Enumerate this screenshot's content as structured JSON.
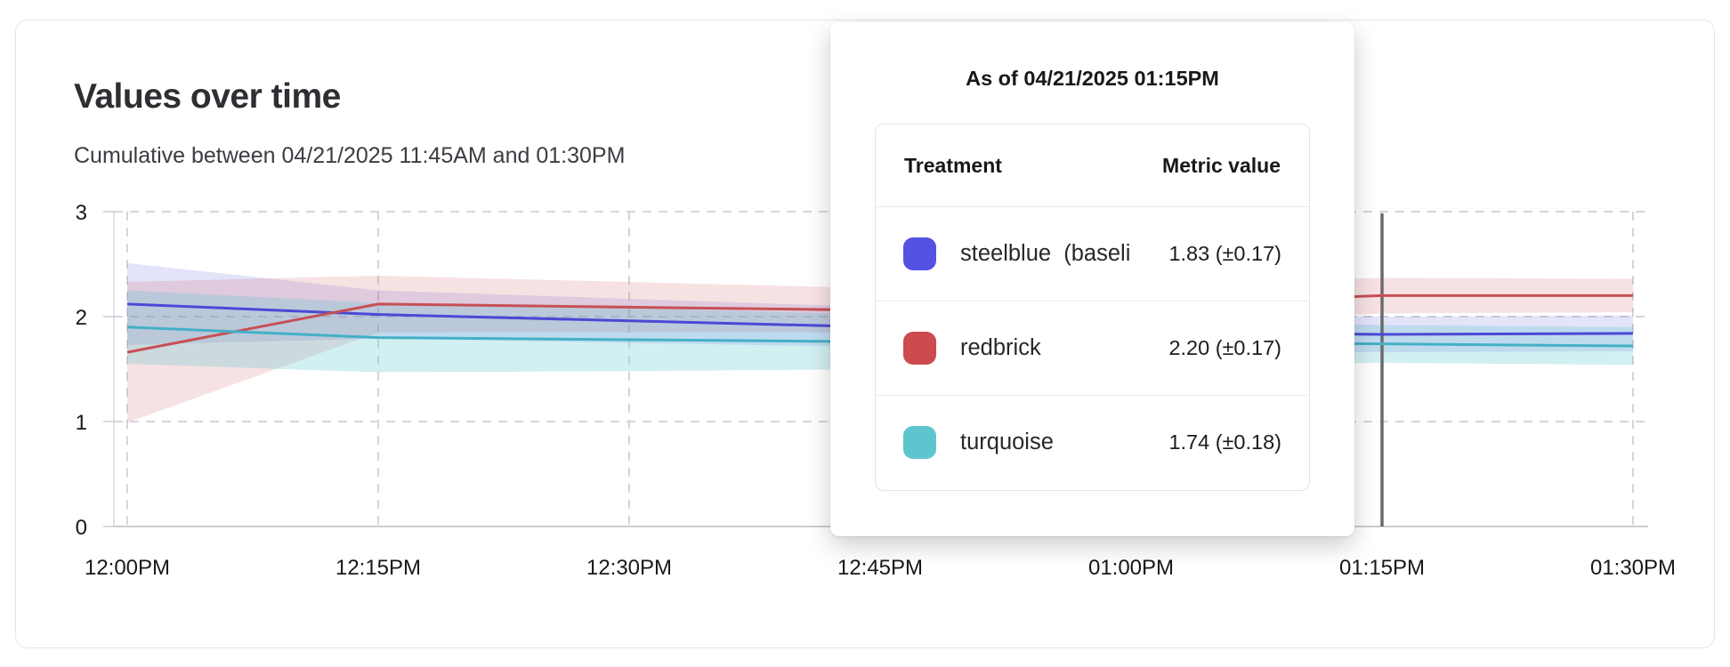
{
  "chart_data": {
    "type": "line",
    "title": "Values over time",
    "subtitle": "Cumulative between 04/21/2025 11:45AM and 01:30PM",
    "x": [
      "12:00PM",
      "12:15PM",
      "12:30PM",
      "12:45PM",
      "01:00PM",
      "01:15PM",
      "01:30PM"
    ],
    "xlabel": "",
    "ylabel": "",
    "ylim": [
      0,
      3
    ],
    "yticks": [
      0,
      1,
      2,
      3
    ],
    "grid": true,
    "legend_position": "tooltip-overlay",
    "marker_x": "01:15PM",
    "marker_color": "#6a6a6a",
    "series": [
      {
        "name": "steelblue (baseline)",
        "line_color": "#4b49d4",
        "band_color": "rgba(83,82,227,0.16)",
        "values": [
          2.12,
          2.02,
          1.96,
          1.9,
          1.86,
          1.83,
          1.84
        ],
        "band_halfwidth": [
          0.39,
          0.23,
          0.21,
          0.19,
          0.18,
          0.17,
          0.17
        ]
      },
      {
        "name": "redbrick",
        "line_color": "#c75055",
        "band_color": "rgba(205,74,78,0.16)",
        "values": [
          1.66,
          2.12,
          2.09,
          2.06,
          2.12,
          2.2,
          2.2
        ],
        "band_halfwidth": [
          0.67,
          0.27,
          0.24,
          0.21,
          0.19,
          0.17,
          0.16
        ]
      },
      {
        "name": "turquoise",
        "line_color": "#44b0c6",
        "band_color": "rgba(94,197,207,0.28)",
        "values": [
          1.9,
          1.8,
          1.78,
          1.76,
          1.75,
          1.74,
          1.72
        ],
        "band_halfwidth": [
          0.35,
          0.33,
          0.3,
          0.26,
          0.22,
          0.18,
          0.18
        ]
      }
    ]
  },
  "tooltip": {
    "title": "As of 04/21/2025 01:15PM",
    "columns": {
      "treatment": "Treatment",
      "metric": "Metric value"
    },
    "rows": [
      {
        "label": "steelblue  (baseli",
        "swatch_color": "#5352e3",
        "value": "1.83 (±0.17)"
      },
      {
        "label": "redbrick",
        "swatch_color": "#cd4a4e",
        "value": "2.20 (±0.17)"
      },
      {
        "label": "turquoise",
        "swatch_color": "#5ec5cf",
        "value": "1.74 (±0.18)"
      }
    ]
  },
  "axis": {
    "x_tick_labels": [
      "12:00PM",
      "12:15PM",
      "12:30PM",
      "12:45PM",
      "01:00PM",
      "01:15PM",
      "01:30PM"
    ],
    "y_tick_labels": [
      "0",
      "1",
      "2",
      "3"
    ]
  }
}
